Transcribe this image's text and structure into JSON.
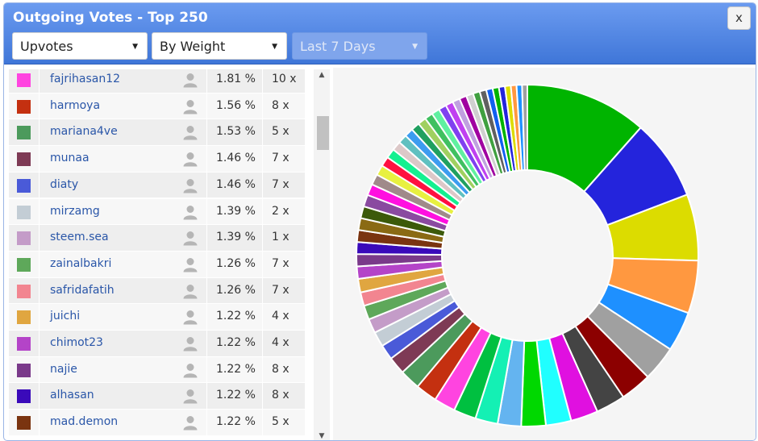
{
  "window": {
    "title": "Outgoing Votes - Top 250",
    "close_label": "x"
  },
  "filters": {
    "type": "Upvotes",
    "sort": "By Weight",
    "period": "Last 7 Days"
  },
  "voters": [
    {
      "name": "fajrihasan12",
      "percent": "1.81 %",
      "count": "10 x",
      "color": "#ff44e0"
    },
    {
      "name": "harmoya",
      "percent": "1.56 %",
      "count": "8 x",
      "color": "#c43010"
    },
    {
      "name": "mariana4ve",
      "percent": "1.53 %",
      "count": "5 x",
      "color": "#4c9a5c"
    },
    {
      "name": "munaa",
      "percent": "1.46 %",
      "count": "7 x",
      "color": "#7e3a55"
    },
    {
      "name": "diaty",
      "percent": "1.46 %",
      "count": "7 x",
      "color": "#4a5ad8"
    },
    {
      "name": "mirzamg",
      "percent": "1.39 %",
      "count": "2 x",
      "color": "#c3cdd5"
    },
    {
      "name": "steem.sea",
      "percent": "1.39 %",
      "count": "1 x",
      "color": "#c49cc8"
    },
    {
      "name": "zainalbakri",
      "percent": "1.26 %",
      "count": "7 x",
      "color": "#5ea85a"
    },
    {
      "name": "safridafatih",
      "percent": "1.26 %",
      "count": "7 x",
      "color": "#f28590"
    },
    {
      "name": "juichi",
      "percent": "1.22 %",
      "count": "4 x",
      "color": "#e0a640"
    },
    {
      "name": "chimot23",
      "percent": "1.22 %",
      "count": "4 x",
      "color": "#b444c8"
    },
    {
      "name": "najie",
      "percent": "1.22 %",
      "count": "8 x",
      "color": "#7a3a8a"
    },
    {
      "name": "alhasan",
      "percent": "1.22 %",
      "count": "8 x",
      "color": "#3a0aba"
    },
    {
      "name": "mad.demon",
      "percent": "1.22 %",
      "count": "5 x",
      "color": "#7a3410"
    }
  ],
  "chart_data": {
    "type": "pie",
    "style": "donut",
    "values": [
      12.5,
      8.3,
      6.8,
      5.4,
      4.1,
      3.6,
      3.2,
      3.0,
      2.8,
      2.6,
      2.5,
      2.4,
      2.3,
      2.3,
      2.2,
      2.2,
      2.1,
      1.81,
      1.56,
      1.53,
      1.46,
      1.46,
      1.39,
      1.39,
      1.26,
      1.26,
      1.22,
      1.22,
      1.22,
      1.22,
      1.22,
      1.15,
      1.1,
      1.05,
      1.0,
      0.98,
      0.95,
      0.92,
      0.9,
      0.88,
      0.86,
      0.84,
      0.82,
      0.8,
      0.78,
      0.76,
      0.74,
      0.72,
      0.7,
      0.68,
      0.66,
      0.64,
      0.62,
      0.6,
      0.58,
      0.56,
      0.54
    ],
    "colors": [
      "#00b400",
      "#2424dc",
      "#dcdc00",
      "#ff9840",
      "#1e90ff",
      "#a0a0a0",
      "#8c0000",
      "#444444",
      "#e010e0",
      "#20ffff",
      "#00d800",
      "#64b4f0",
      "#14f0b4",
      "#00c040",
      "#ff44e0",
      "#c43010",
      "#4c9a5c",
      "#7e3a55",
      "#4a5ad8",
      "#c3cdd5",
      "#c49cc8",
      "#5ea85a",
      "#f28590",
      "#e0a640",
      "#b444c8",
      "#7a3a8a",
      "#3a0aba",
      "#7a3410",
      "#8a6a14",
      "#3c5a0a",
      "#8a4aa0",
      "#ff10e0",
      "#a08a8a",
      "#e8f040",
      "#ff1040",
      "#14f090",
      "#dcc8c8",
      "#60c0c0",
      "#3c9cf0",
      "#20a060",
      "#a0d060",
      "#40c060",
      "#60f0a0",
      "#8040f0",
      "#c040f0",
      "#c0a0e0",
      "#a000a0",
      "#d0d0d0",
      "#40a040",
      "#606060",
      "#1060f0",
      "#00b400",
      "#2424dc",
      "#dcdc00",
      "#ff9840",
      "#1e90ff",
      "#a0a0a0"
    ]
  }
}
